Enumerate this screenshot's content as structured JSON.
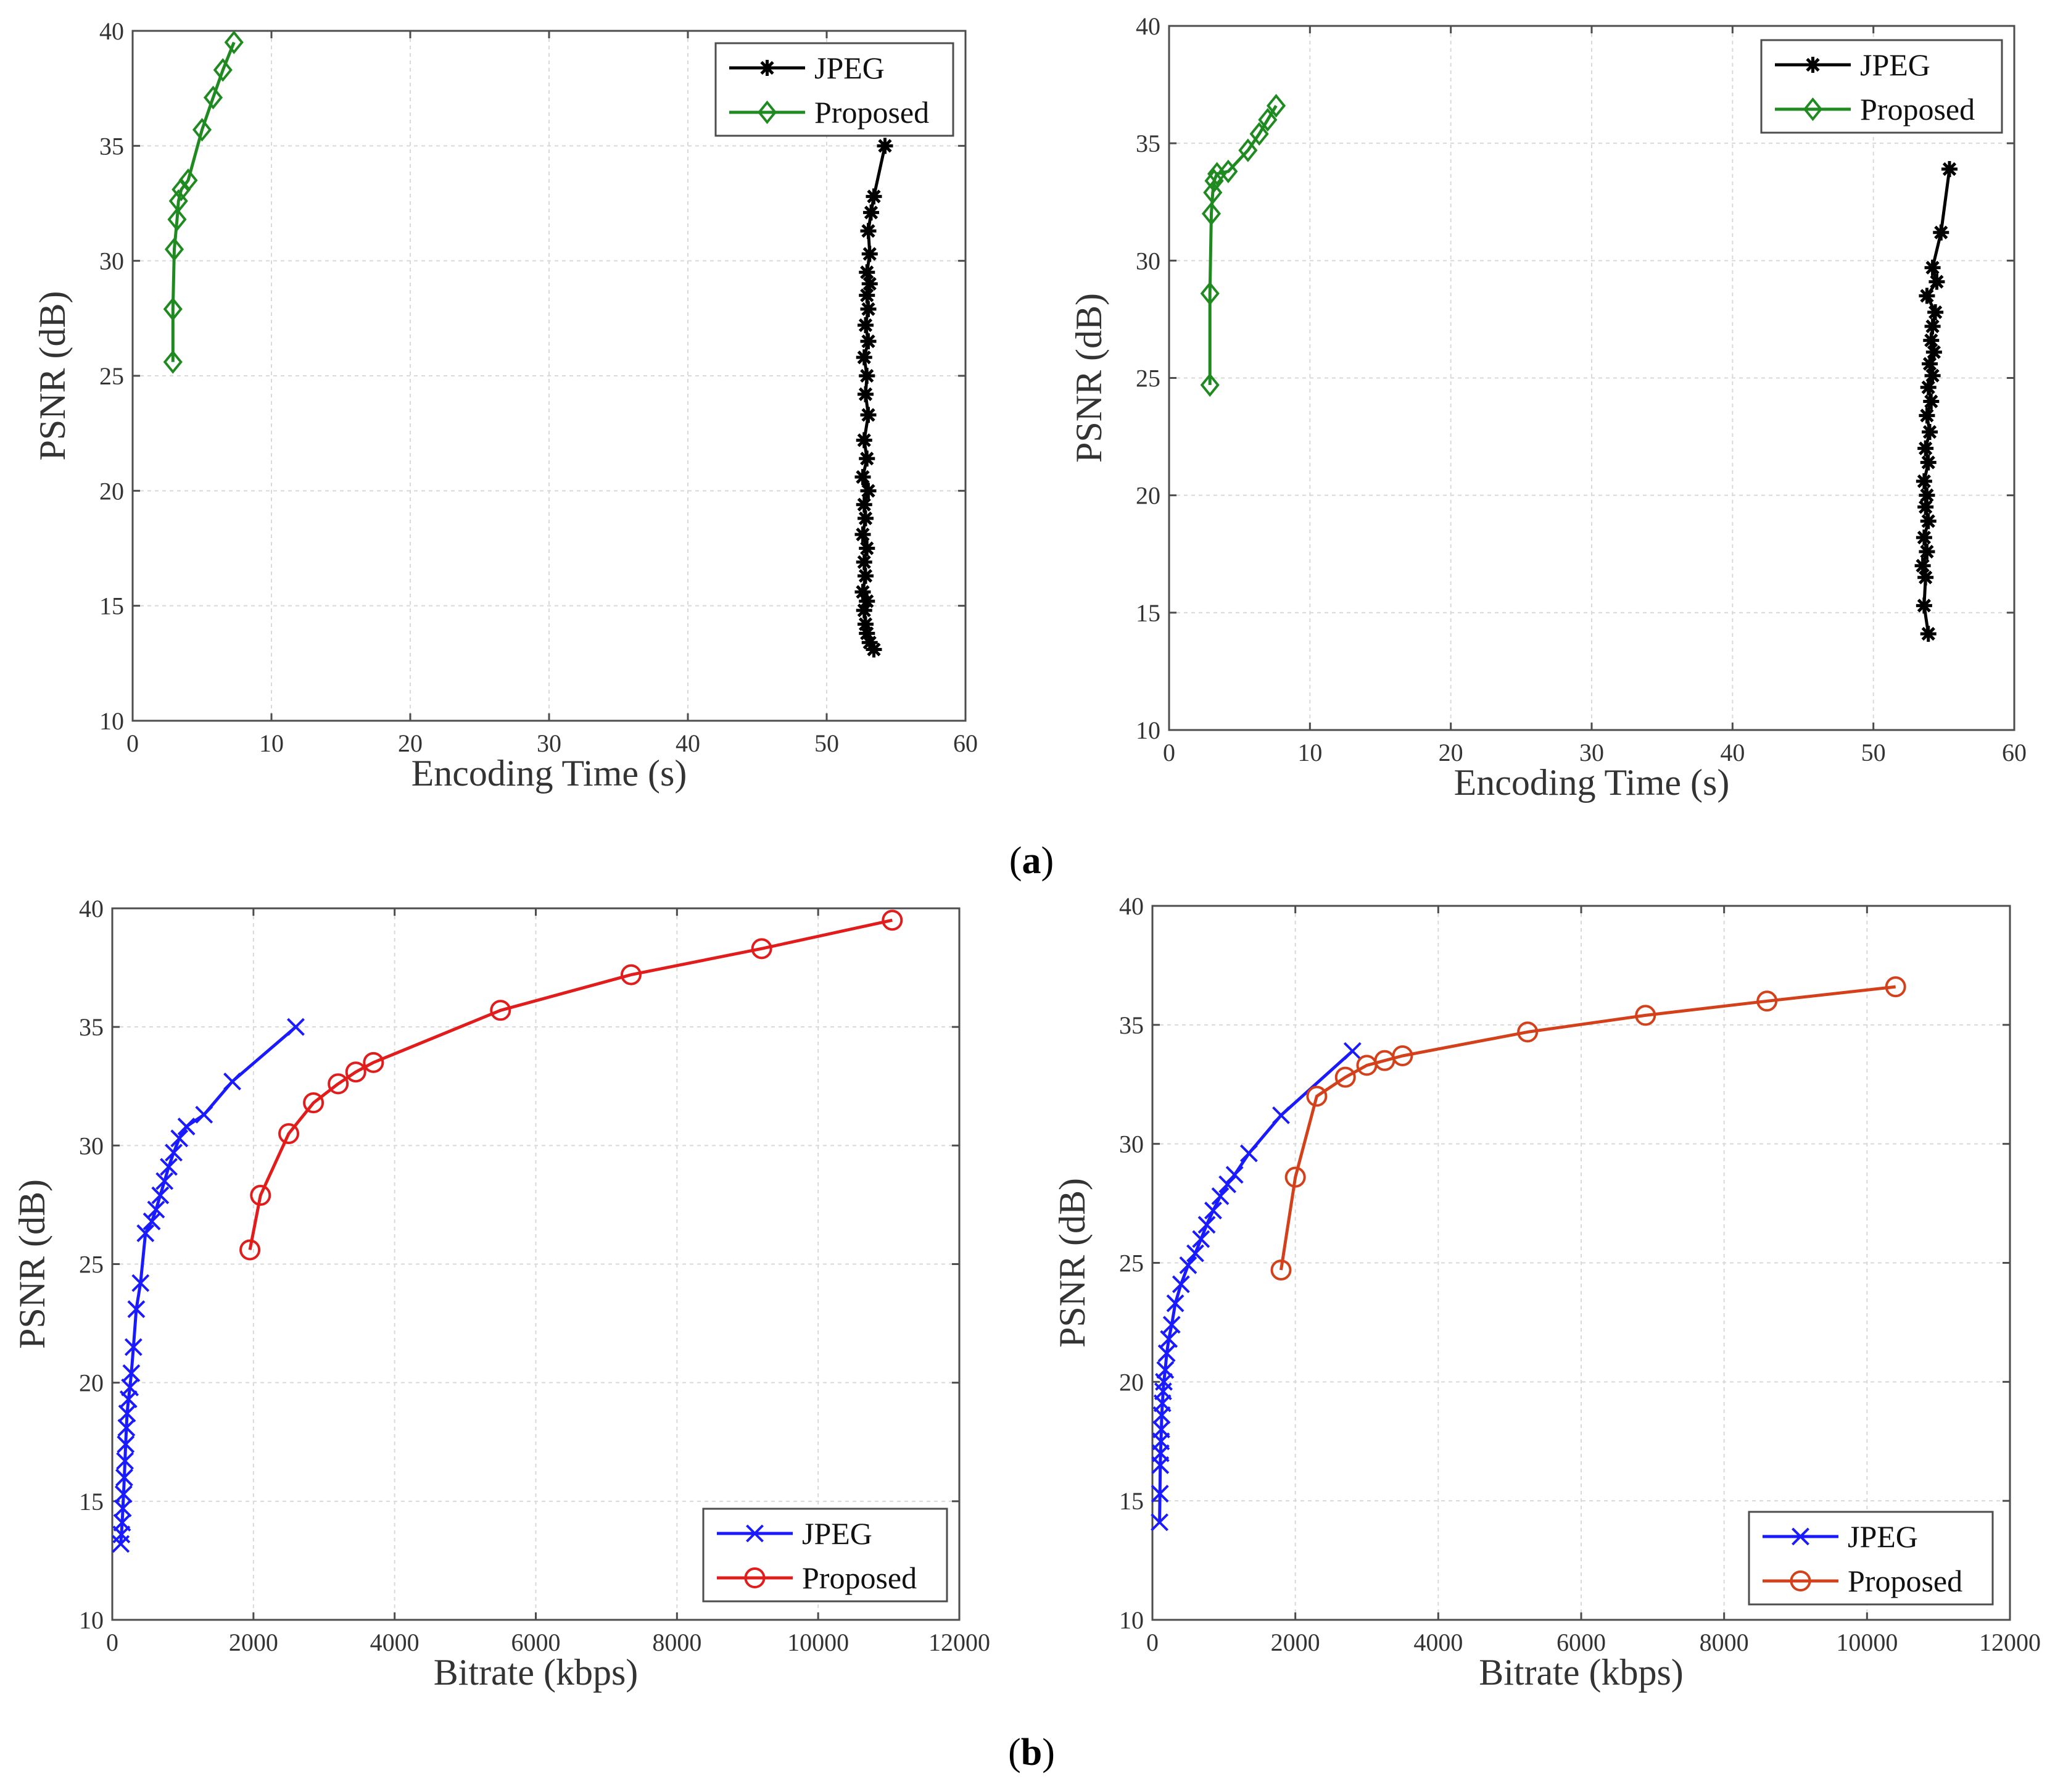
{
  "figure": {
    "caption_a": "a",
    "caption_b": "b"
  },
  "chart_data": [
    {
      "id": "a-left",
      "type": "line",
      "title": "",
      "xlabel": "Encoding Time (s)",
      "ylabel": "PSNR (dB)",
      "xlim": [
        0,
        60
      ],
      "ylim": [
        10,
        40
      ],
      "xticks": [
        "0",
        "10",
        "20",
        "30",
        "40",
        "50",
        "60"
      ],
      "yticks": [
        "10",
        "15",
        "20",
        "25",
        "30",
        "35",
        "40"
      ],
      "grid": true,
      "legend_position": "top-right",
      "series": [
        {
          "name": "JPEG",
          "color": "#000000",
          "marker": "asterisk",
          "x": [
            53.4,
            53.1,
            52.9,
            52.8,
            52.7,
            52.9,
            52.6,
            52.8,
            52.7,
            52.9,
            52.6,
            52.8,
            52.7,
            53.0,
            52.6,
            52.9,
            52.7,
            53.0,
            52.8,
            52.9,
            52.7,
            53.0,
            52.8,
            53.0,
            52.9,
            53.1,
            52.9,
            53.1,
            53.0,
            53.2,
            53.4,
            54.2
          ],
          "y": [
            13.1,
            13.4,
            13.8,
            14.2,
            14.8,
            15.2,
            15.6,
            16.3,
            16.9,
            17.5,
            18.1,
            18.8,
            19.4,
            20.0,
            20.6,
            21.4,
            22.2,
            23.3,
            24.2,
            25.0,
            25.8,
            26.5,
            27.2,
            27.9,
            28.5,
            29.0,
            29.5,
            30.3,
            31.3,
            32.1,
            32.8,
            35.0
          ]
        },
        {
          "name": "Proposed",
          "color": "#1f8a1f",
          "marker": "diamond",
          "x": [
            2.9,
            2.9,
            3.0,
            3.2,
            3.3,
            3.5,
            4.0,
            5.0,
            5.8,
            6.5,
            7.3
          ],
          "y": [
            25.6,
            27.9,
            30.5,
            31.8,
            32.6,
            33.1,
            33.5,
            35.7,
            37.1,
            38.3,
            39.5
          ]
        }
      ]
    },
    {
      "id": "a-right",
      "type": "line",
      "title": "",
      "xlabel": "Encoding Time (s)",
      "ylabel": "PSNR (dB)",
      "xlim": [
        0,
        60
      ],
      "ylim": [
        10,
        40
      ],
      "xticks": [
        "0",
        "10",
        "20",
        "30",
        "40",
        "50",
        "60"
      ],
      "yticks": [
        "10",
        "15",
        "20",
        "25",
        "30",
        "35",
        "40"
      ],
      "grid": true,
      "legend_position": "top-right",
      "series": [
        {
          "name": "JPEG",
          "color": "#000000",
          "marker": "asterisk",
          "x": [
            53.9,
            53.6,
            53.7,
            53.5,
            53.8,
            53.6,
            53.9,
            53.7,
            53.8,
            53.6,
            53.9,
            53.7,
            54.0,
            53.8,
            54.1,
            53.9,
            54.2,
            54.0,
            54.3,
            54.1,
            54.2,
            54.4,
            53.8,
            54.5,
            54.2,
            54.8,
            55.4
          ],
          "y": [
            14.1,
            15.3,
            16.5,
            17.0,
            17.6,
            18.2,
            18.9,
            19.5,
            20.0,
            20.6,
            21.4,
            22.0,
            22.7,
            23.4,
            24.0,
            24.6,
            25.1,
            25.6,
            26.1,
            26.6,
            27.2,
            27.8,
            28.5,
            29.1,
            29.7,
            31.2,
            33.9
          ]
        },
        {
          "name": "Proposed",
          "color": "#1f8a1f",
          "marker": "diamond",
          "x": [
            2.9,
            2.9,
            3.0,
            3.1,
            3.2,
            3.4,
            4.2,
            5.6,
            6.4,
            7.0,
            7.6
          ],
          "y": [
            24.7,
            28.6,
            32.0,
            32.9,
            33.4,
            33.7,
            33.8,
            34.7,
            35.4,
            36.0,
            36.6
          ]
        }
      ]
    },
    {
      "id": "b-left",
      "type": "line",
      "title": "",
      "xlabel": "Bitrate (kbps)",
      "ylabel": "PSNR (dB)",
      "xlim": [
        0,
        12000
      ],
      "ylim": [
        10,
        40
      ],
      "xticks": [
        "0",
        "2000",
        "4000",
        "6000",
        "8000",
        "10000",
        "12000"
      ],
      "yticks": [
        "10",
        "15",
        "20",
        "25",
        "30",
        "35",
        "40"
      ],
      "grid": true,
      "legend_position": "bottom-right",
      "series": [
        {
          "name": "JPEG",
          "color": "#1a1aff",
          "marker": "x",
          "x": [
            120,
            130,
            140,
            150,
            160,
            170,
            180,
            190,
            200,
            210,
            230,
            250,
            270,
            300,
            340,
            400,
            470,
            560,
            620,
            680,
            740,
            800,
            870,
            950,
            1050,
            1300,
            1700,
            2600
          ],
          "y": [
            13.2,
            13.6,
            14.1,
            14.7,
            15.3,
            16.0,
            16.7,
            17.4,
            18.1,
            18.7,
            19.3,
            19.8,
            20.4,
            21.5,
            23.1,
            24.2,
            26.3,
            26.8,
            27.3,
            27.9,
            28.5,
            29.1,
            29.7,
            30.3,
            30.8,
            31.3,
            32.7,
            35.0
          ]
        },
        {
          "name": "Proposed",
          "color": "#e21b1b",
          "marker": "circle",
          "x": [
            1950,
            2100,
            2500,
            2850,
            3200,
            3450,
            3700,
            5500,
            7350,
            9200,
            11050
          ],
          "y": [
            25.6,
            27.9,
            30.5,
            31.8,
            32.6,
            33.1,
            33.5,
            35.7,
            37.2,
            38.3,
            39.5
          ]
        }
      ]
    },
    {
      "id": "b-right",
      "type": "line",
      "title": "",
      "xlabel": "Bitrate (kbps)",
      "ylabel": "PSNR (dB)",
      "xlim": [
        0,
        12000
      ],
      "ylim": [
        10,
        40
      ],
      "xticks": [
        "0",
        "2000",
        "4000",
        "6000",
        "8000",
        "10000",
        "12000"
      ],
      "yticks": [
        "10",
        "15",
        "20",
        "25",
        "30",
        "35",
        "40"
      ],
      "grid": true,
      "legend_position": "bottom-right",
      "series": [
        {
          "name": "JPEG",
          "color": "#1a1aff",
          "marker": "x",
          "x": [
            100,
            105,
            110,
            115,
            120,
            125,
            130,
            140,
            150,
            160,
            180,
            200,
            230,
            270,
            320,
            400,
            500,
            600,
            680,
            760,
            850,
            950,
            1050,
            1150,
            1350,
            1800,
            2800
          ],
          "y": [
            14.1,
            15.3,
            16.5,
            17.0,
            17.5,
            18.0,
            18.6,
            19.1,
            19.6,
            20.0,
            20.5,
            21.2,
            21.8,
            22.4,
            23.3,
            24.1,
            24.9,
            25.4,
            26.0,
            26.6,
            27.2,
            27.8,
            28.3,
            28.7,
            29.6,
            31.2,
            33.9
          ]
        },
        {
          "name": "Proposed",
          "color": "#d4401a",
          "marker": "circle",
          "x": [
            1800,
            2000,
            2300,
            2700,
            3000,
            3250,
            3500,
            5250,
            6900,
            8600,
            10400
          ],
          "y": [
            24.7,
            28.6,
            32.0,
            32.8,
            33.3,
            33.5,
            33.7,
            34.7,
            35.4,
            36.0,
            36.6
          ]
        }
      ]
    }
  ]
}
